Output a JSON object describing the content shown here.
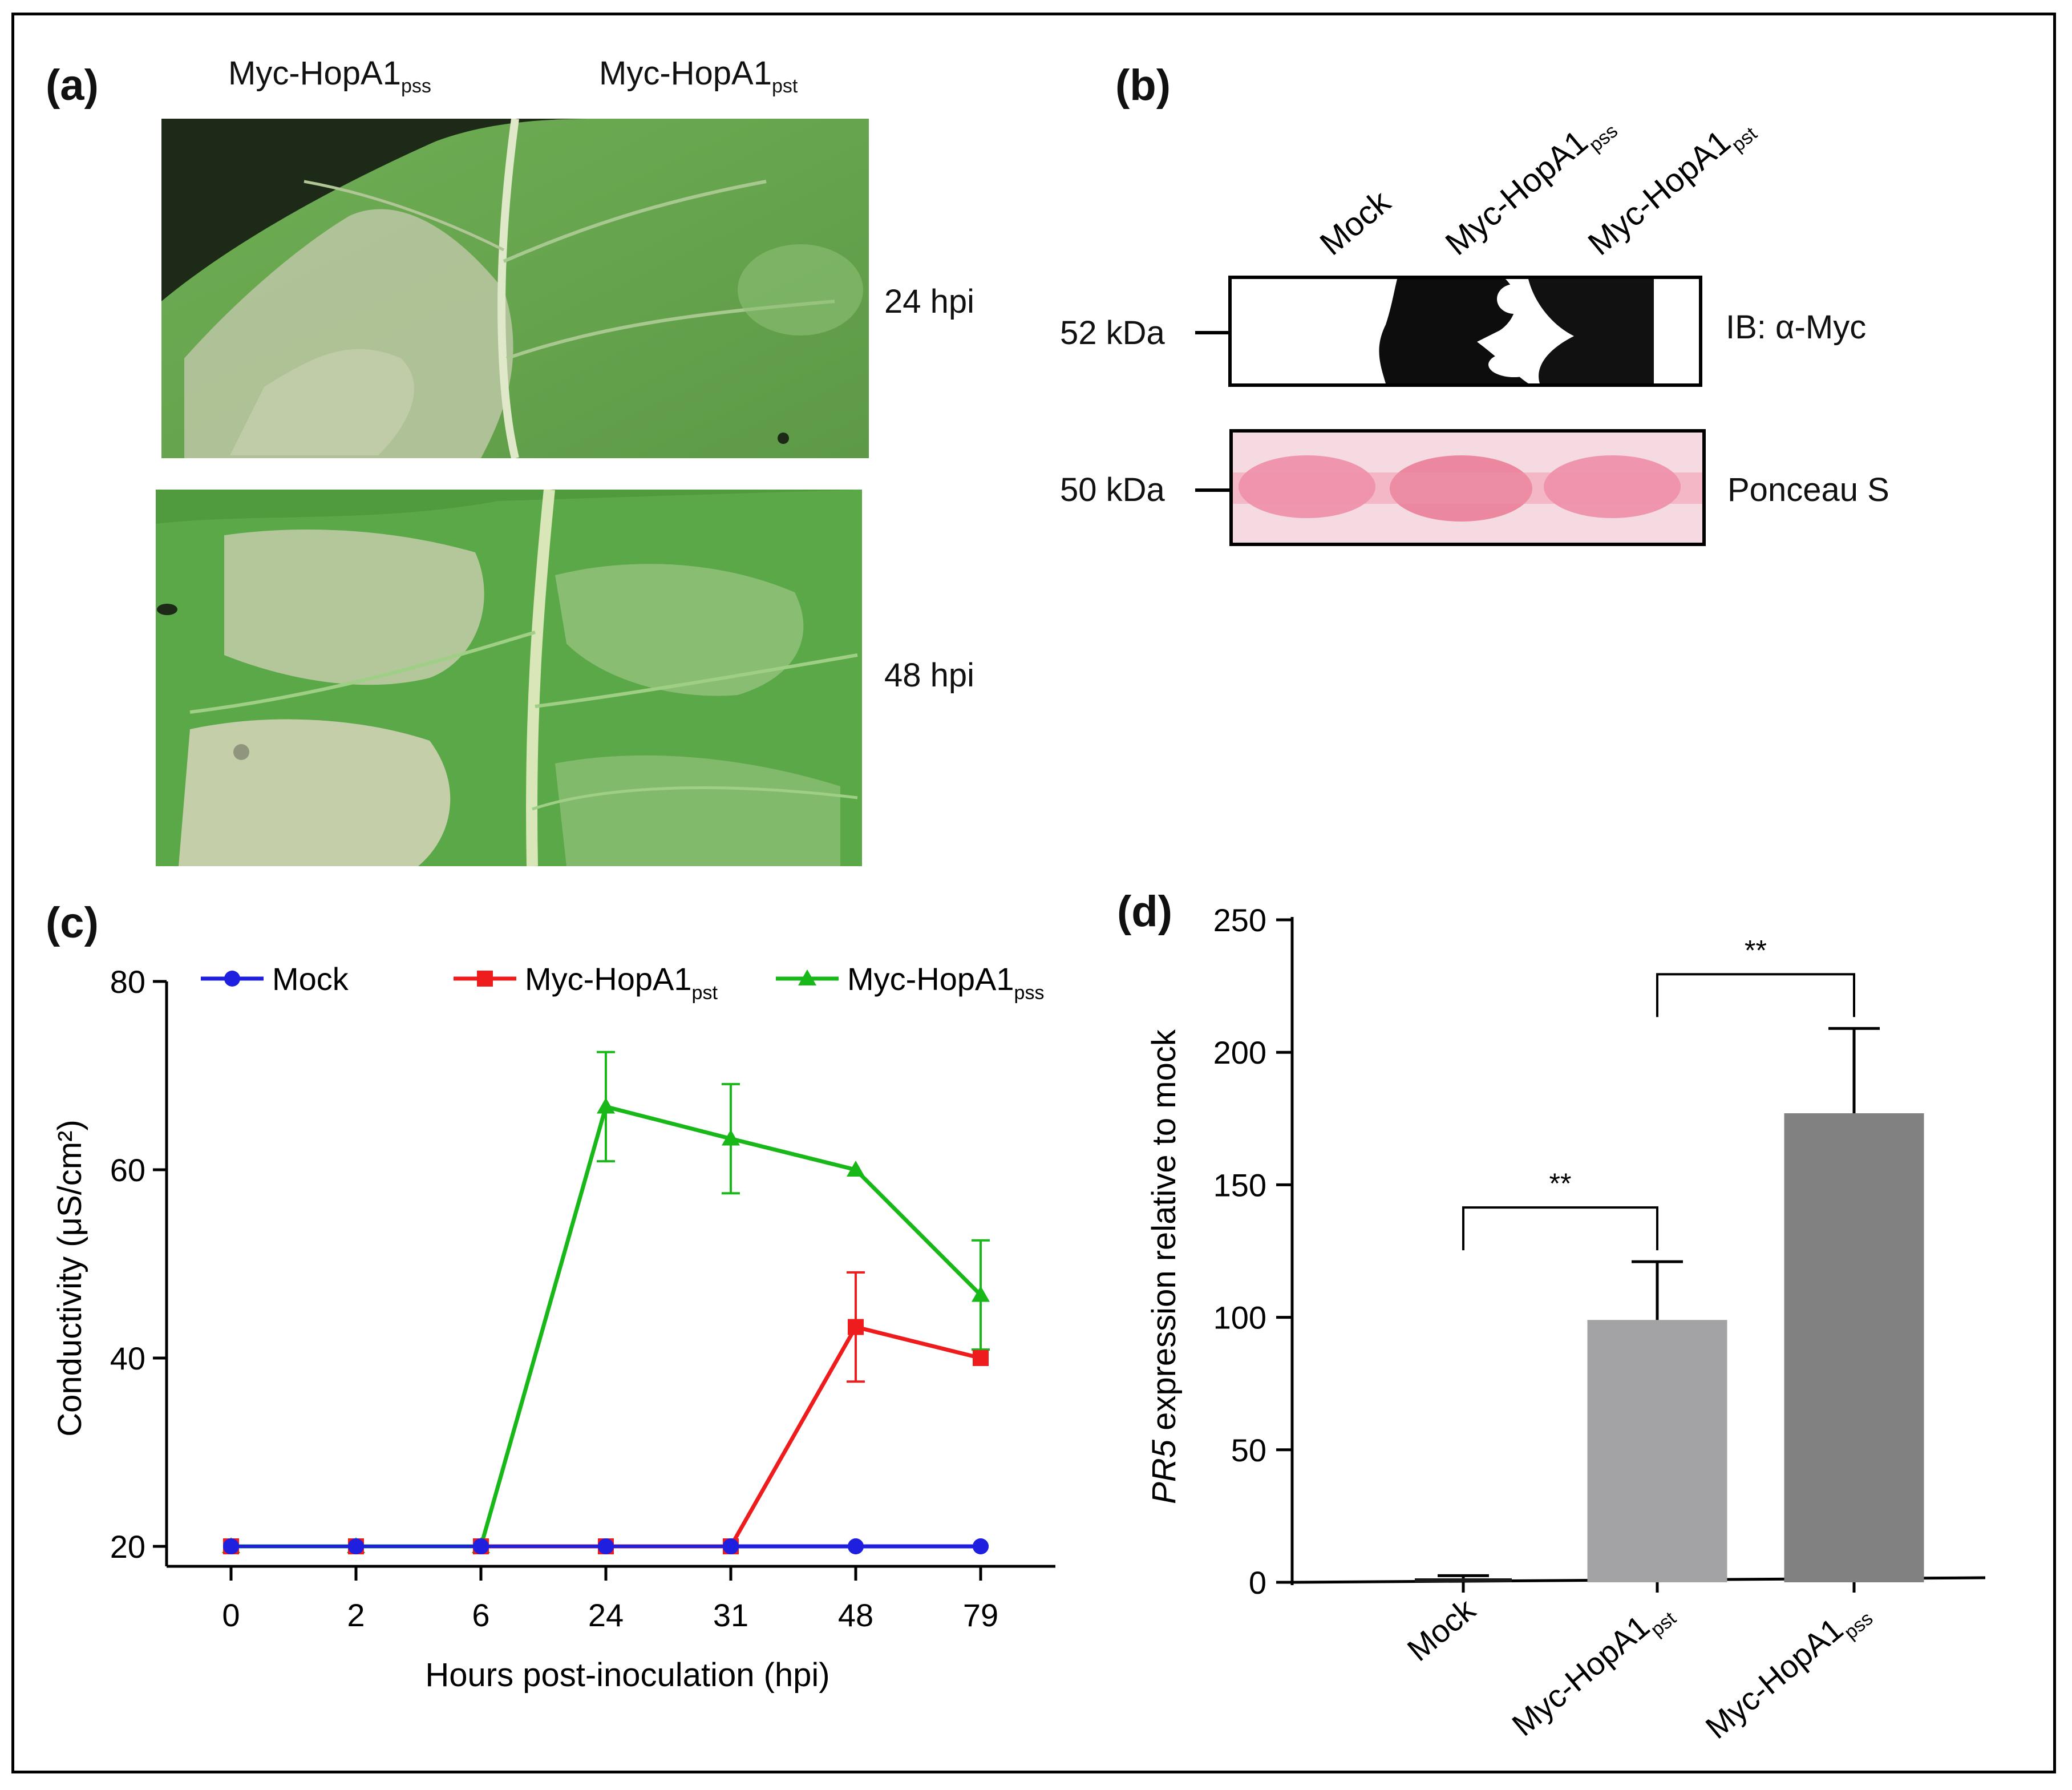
{
  "figure": {
    "panel_a": {
      "letter": "(a)",
      "col_left": {
        "main": "Myc-HopA1",
        "sub": "pss"
      },
      "col_right": {
        "main": "Myc-HopA1",
        "sub": "pst"
      },
      "row_top": "24 hpi",
      "row_bottom": "48 hpi"
    },
    "panel_b": {
      "letter": "(b)",
      "lanes": [
        {
          "main": "Mock",
          "sub": ""
        },
        {
          "main": "Myc-HopA1",
          "sub": "pss"
        },
        {
          "main": "Myc-HopA1",
          "sub": "pst"
        }
      ],
      "blot_top": {
        "size": "52 kDa",
        "label": "IB: α-Myc"
      },
      "blot_bottom": {
        "size": "50 kDa",
        "label": "Ponceau S"
      }
    },
    "panel_c": {
      "letter": "(c)"
    },
    "panel_d": {
      "letter": "(d)"
    }
  },
  "chart_data": [
    {
      "id": "c",
      "type": "line",
      "xlabel": "Hours post-inoculation (hpi)",
      "ylabel": "Conductivity (μS/cm²)",
      "x": [
        "0",
        "2",
        "6",
        "24",
        "31",
        "48",
        "79"
      ],
      "ylim": [
        20,
        80
      ],
      "yticks": [
        20,
        40,
        60,
        80
      ],
      "legend_position": "top",
      "series": [
        {
          "name": "Mock",
          "name_sub": "",
          "color": "#1f1fe0",
          "marker": "circle",
          "values": [
            20,
            20,
            20,
            20,
            20,
            20,
            20
          ],
          "errors": [
            0,
            0,
            0,
            0,
            0,
            0,
            0
          ]
        },
        {
          "name": "Myc-HopA1",
          "name_sub": "pst",
          "color": "#ee1c1c",
          "marker": "square",
          "values": [
            20,
            20,
            20,
            20,
            20,
            43.3,
            40
          ],
          "errors": [
            0,
            0,
            0,
            0,
            0,
            5.8,
            0
          ]
        },
        {
          "name": "Myc-HopA1",
          "name_sub": "pss",
          "color": "#17b817",
          "marker": "triangle",
          "values": [
            20,
            20,
            20,
            66.7,
            63.3,
            60,
            46.7
          ],
          "errors": [
            0,
            0,
            0,
            5.8,
            5.8,
            0,
            5.8
          ]
        }
      ]
    },
    {
      "id": "d",
      "type": "bar",
      "ylabel_italic": "PR5",
      "ylabel": " expression relative to mock",
      "categories": [
        {
          "main": "Mock",
          "sub": ""
        },
        {
          "main": "Myc-HopA1",
          "sub": "pst"
        },
        {
          "main": "Myc-HopA1",
          "sub": "pss"
        }
      ],
      "values": [
        1.5,
        99,
        177
      ],
      "errors": [
        1,
        22,
        32
      ],
      "colors": [
        "#1a1a1a",
        "#a3a3a6",
        "#818181"
      ],
      "ylim": [
        0,
        250
      ],
      "yticks": [
        0,
        50,
        100,
        150,
        200,
        250
      ],
      "significance": [
        {
          "from": 0,
          "to": 1,
          "label": "**"
        },
        {
          "from": 1,
          "to": 2,
          "label": "**"
        }
      ]
    }
  ]
}
